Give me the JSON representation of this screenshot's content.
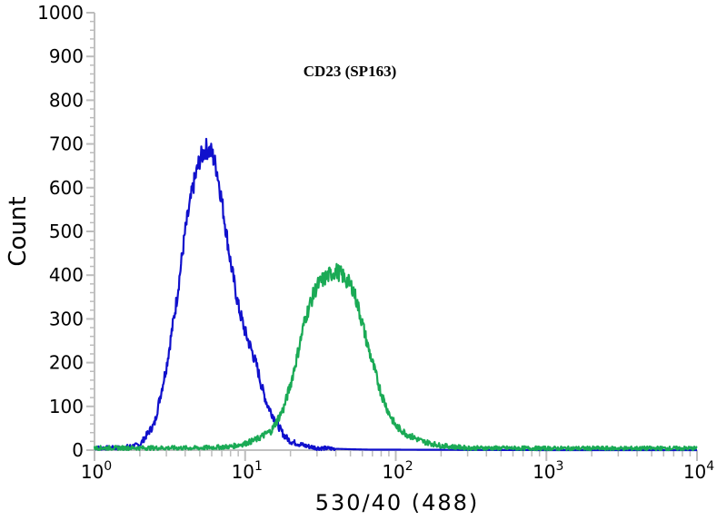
{
  "chart_data": {
    "type": "line",
    "title": "CD23 (SP163)",
    "xlabel": "530/40 (488)",
    "ylabel": "Count",
    "x_scale": "log",
    "xlim": [
      1,
      10000
    ],
    "ylim": [
      0,
      1000
    ],
    "y_ticks": [
      "0",
      "100",
      "200",
      "300",
      "400",
      "500",
      "600",
      "700",
      "800",
      "900",
      "1000"
    ],
    "x_ticks": [
      {
        "base": "10",
        "exp": "0"
      },
      {
        "base": "10",
        "exp": "1"
      },
      {
        "base": "10",
        "exp": "2"
      },
      {
        "base": "10",
        "exp": "3"
      },
      {
        "base": "10",
        "exp": "4"
      }
    ],
    "grid": false,
    "series": [
      {
        "color": "#1010cc",
        "x": [
          1,
          1.5,
          2.0,
          2.5,
          3.0,
          3.5,
          4.0,
          4.5,
          5.0,
          5.5,
          6.0,
          6.5,
          7.0,
          8.0,
          9.0,
          10,
          11,
          12,
          13,
          14,
          15,
          16,
          18,
          20,
          25,
          30,
          40,
          50,
          70,
          100,
          1000,
          10000
        ],
        "y": [
          5,
          5,
          12,
          60,
          190,
          340,
          500,
          600,
          665,
          690,
          680,
          640,
          570,
          430,
          330,
          270,
          230,
          190,
          140,
          105,
          85,
          65,
          35,
          20,
          10,
          5,
          3,
          2,
          1,
          1,
          0,
          0
        ]
      },
      {
        "color": "#1aaa55",
        "x": [
          1,
          5,
          8,
          10,
          12,
          15,
          18,
          20,
          22,
          25,
          28,
          30,
          33,
          36,
          40,
          44,
          48,
          52,
          56,
          60,
          65,
          70,
          80,
          90,
          100,
          120,
          150,
          200,
          300,
          1000,
          10000
        ],
        "y": [
          5,
          5,
          8,
          15,
          25,
          45,
          95,
          150,
          210,
          300,
          350,
          375,
          390,
          400,
          410,
          400,
          385,
          370,
          330,
          290,
          240,
          200,
          130,
          85,
          55,
          35,
          20,
          10,
          5,
          4,
          4
        ]
      }
    ]
  }
}
